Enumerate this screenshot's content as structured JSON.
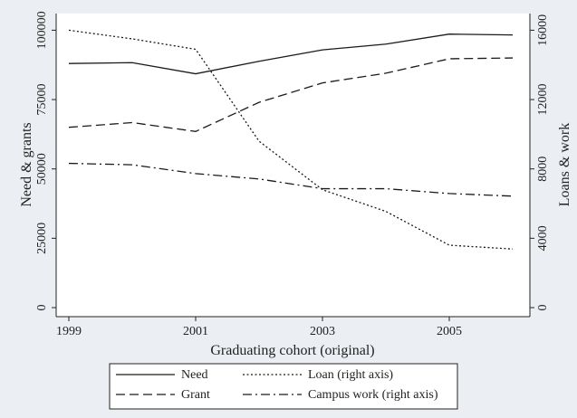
{
  "chart_data": {
    "type": "line",
    "xlabel": "Graduating cohort (original)",
    "ylabel_left": "Need & grants",
    "ylabel_right": "Loans & work",
    "x": [
      1999,
      2000,
      2001,
      2002,
      2003,
      2004,
      2005,
      2006
    ],
    "xlim": [
      1999,
      2006
    ],
    "x_ticks": [
      "1999",
      "2001",
      "2003",
      "2005"
    ],
    "x_tick_values": [
      1999,
      2001,
      2003,
      2005
    ],
    "ylim_left": [
      0,
      106000
    ],
    "yticks_left": [
      "0",
      "25000",
      "50000",
      "75000",
      "100000"
    ],
    "ytick_values_left": [
      0,
      25000,
      50000,
      75000,
      100000
    ],
    "ylim_right": [
      0,
      16960
    ],
    "yticks_right": [
      "0",
      "4000",
      "8000",
      "12000",
      "16000"
    ],
    "ytick_values_right": [
      0,
      4000,
      8000,
      12000,
      16000
    ],
    "grid": false,
    "legend_position": "bottom",
    "series": [
      {
        "name": "Need",
        "axis": "left",
        "dash": "solid",
        "values": [
          88000,
          88300,
          84300,
          88800,
          92900,
          95000,
          98600,
          98300
        ]
      },
      {
        "name": "Grant",
        "axis": "left",
        "dash": "dashed",
        "values": [
          65000,
          66700,
          63500,
          74000,
          81000,
          84500,
          89700,
          90000
        ]
      },
      {
        "name": "Loan (right axis)",
        "axis": "right",
        "dash": "dotted",
        "values": [
          16000,
          15500,
          14900,
          9600,
          6800,
          5550,
          3600,
          3380
        ]
      },
      {
        "name": "Campus work (right axis)",
        "axis": "right",
        "dash": "dashdot",
        "values": [
          8320,
          8240,
          7730,
          7420,
          6860,
          6860,
          6580,
          6430
        ]
      }
    ],
    "colors": {
      "line": "#1a1a1a",
      "plot_bg": "#ffffff",
      "outer_bg": "#ebeef2"
    }
  }
}
